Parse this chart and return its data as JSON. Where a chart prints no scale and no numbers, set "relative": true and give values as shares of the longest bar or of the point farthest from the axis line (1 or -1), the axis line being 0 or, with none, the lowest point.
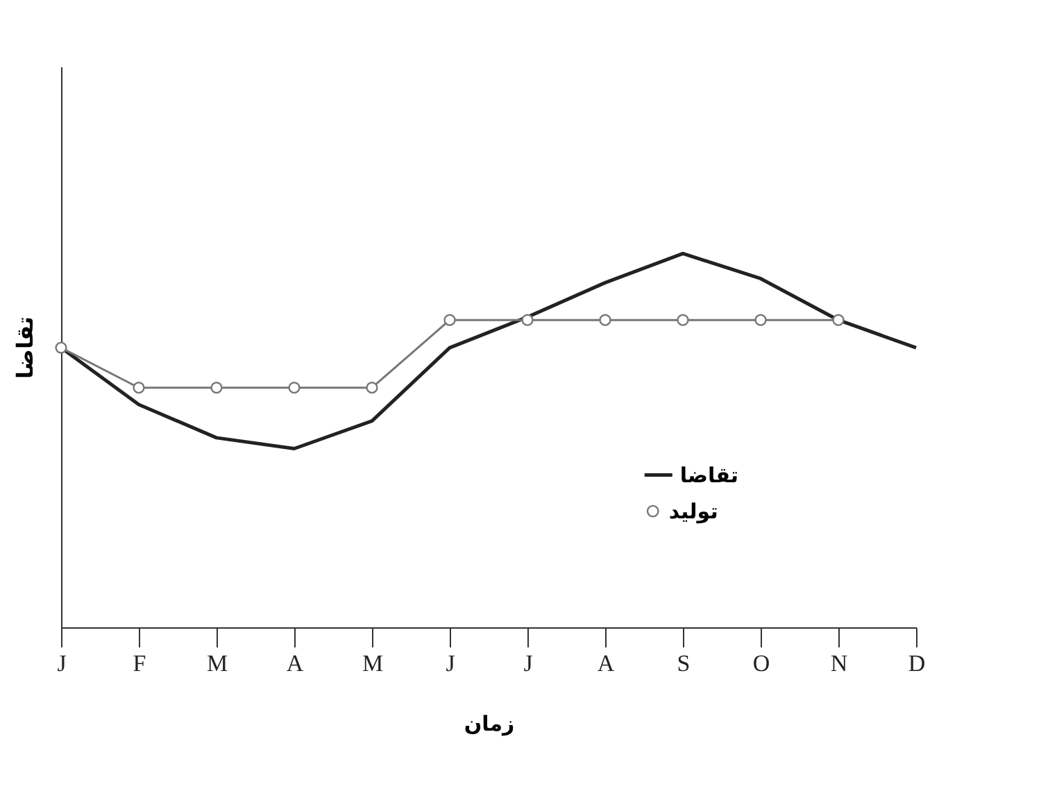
{
  "chart_data": {
    "type": "line",
    "xlabel": "زمان",
    "ylabel": "تقاضا",
    "relative": true,
    "tick_labels": "x",
    "grid": false,
    "legend": "bottom right",
    "categories": [
      "J",
      "F",
      "M",
      "A",
      "M",
      "J",
      "J",
      "A",
      "S",
      "O",
      "N",
      "D"
    ],
    "series": [
      {
        "name": "تقاضا",
        "color": "#222222",
        "marker": "none",
        "line_style": "solid",
        "values": [
          0.748,
          0.596,
          0.507,
          0.478,
          0.552,
          0.748,
          0.83,
          0.922,
          1,
          0.933,
          0.822,
          0.748
        ]
      },
      {
        "name": "تولید",
        "color": "#777777",
        "marker": "circle",
        "line_style": "solid",
        "values": [
          0.748,
          0.641,
          0.641,
          0.641,
          0.641,
          0.822,
          0.822,
          0.822,
          0.822,
          0.822,
          0.822,
          null
        ]
      }
    ]
  }
}
